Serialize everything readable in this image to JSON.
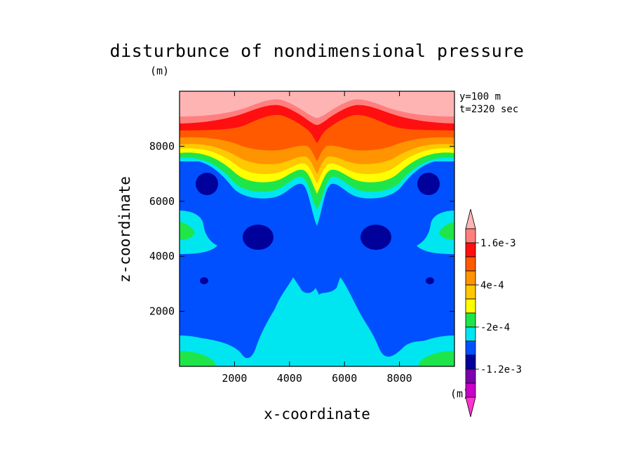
{
  "chart_data": {
    "type": "contour",
    "title": "disturbunce of nondimensional pressure",
    "unit_label": "(m)",
    "info": [
      "y=100 m",
      "t=2320 sec"
    ],
    "xlabel": "x-coordinate",
    "ylabel": "z-coordinate",
    "xlim": [
      0,
      10000
    ],
    "ylim": [
      0,
      10000
    ],
    "xticks": [
      2000,
      4000,
      6000,
      8000
    ],
    "yticks": [
      2000,
      4000,
      6000,
      8000
    ],
    "xtick_labels": [
      "2000",
      "4000",
      "6000",
      "8000"
    ],
    "ytick_labels": [
      "2000",
      "4000",
      "6000",
      "8000"
    ],
    "colorbar": {
      "unit": "(m)",
      "labels": [
        "1.6e-3",
        "4e-4",
        "-2e-4",
        "-1.2e-3"
      ],
      "colors": [
        "#ffb4b4",
        "#ff7f7f",
        "#ff0f0f",
        "#ff5a00",
        "#ff9400",
        "#ffc800",
        "#ffff00",
        "#1ee64a",
        "#00e6f0",
        "#0050ff",
        "#00009b",
        "#7d00af",
        "#c800c8",
        "#ff32d2"
      ]
    }
  }
}
